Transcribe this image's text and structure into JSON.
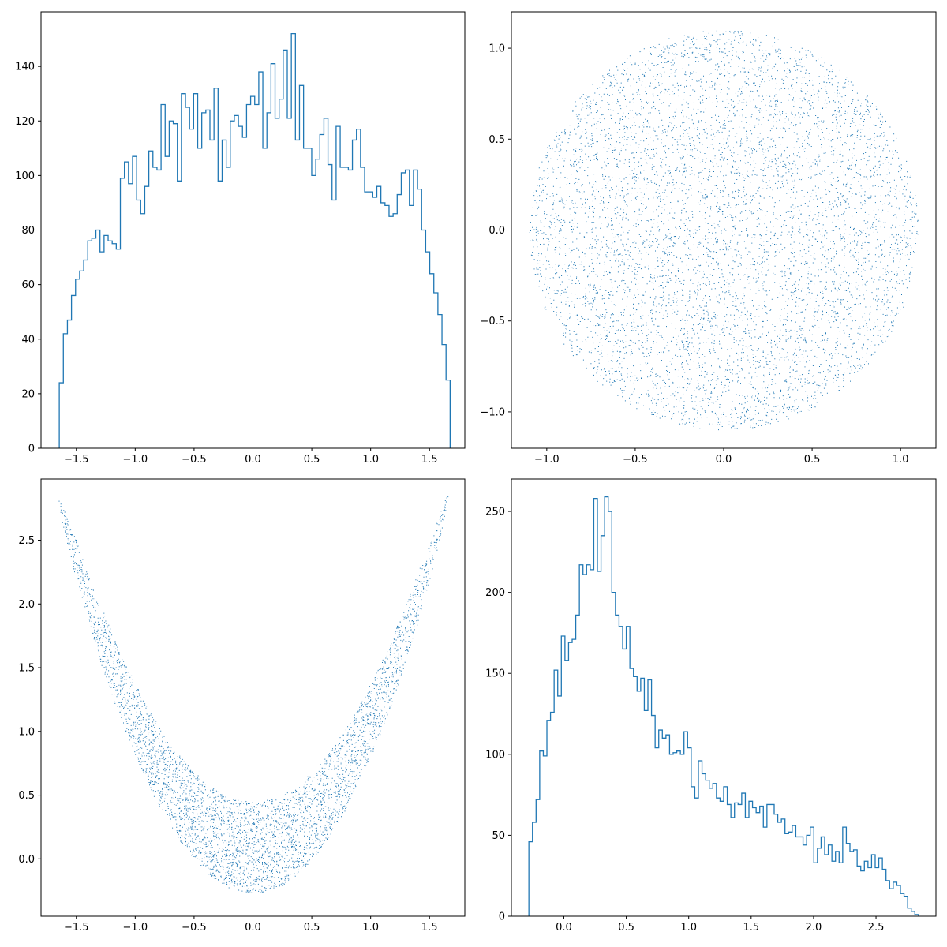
{
  "colors": {
    "series": "#1f77b4",
    "axes": "#000000",
    "background": "#ffffff"
  },
  "chart_data": [
    {
      "id": "hist-x",
      "type": "bar",
      "histtype": "step",
      "title": "",
      "xlabel": "",
      "ylabel": "",
      "xlim": [
        -1.8,
        1.8
      ],
      "ylim": [
        0,
        160
      ],
      "xticks": [
        -1.5,
        -1.0,
        -0.5,
        0.0,
        0.5,
        1.0,
        1.5
      ],
      "xtick_labels": [
        "−1.5",
        "−1.0",
        "−0.5",
        "0.0",
        "0.5",
        "1.0",
        "1.5"
      ],
      "yticks": [
        0,
        20,
        40,
        60,
        80,
        100,
        120,
        140
      ],
      "ytick_labels": [
        "0",
        "20",
        "40",
        "60",
        "80",
        "100",
        "120",
        "140"
      ],
      "bin_start": -1.645,
      "bin_end": 1.675,
      "values": [
        24,
        42,
        47,
        56,
        62,
        65,
        69,
        76,
        77,
        80,
        72,
        78,
        76,
        75,
        73,
        99,
        105,
        97,
        107,
        91,
        86,
        96,
        109,
        103,
        102,
        126,
        107,
        120,
        119,
        98,
        130,
        125,
        117,
        130,
        110,
        123,
        124,
        113,
        132,
        98,
        113,
        103,
        120,
        122,
        118,
        114,
        126,
        129,
        126,
        138,
        110,
        123,
        141,
        121,
        128,
        146,
        121,
        152,
        113,
        133,
        110,
        110,
        100,
        106,
        115,
        121,
        104,
        91,
        118,
        103,
        103,
        102,
        113,
        117,
        103,
        94,
        94,
        92,
        96,
        90,
        89,
        85,
        86,
        93,
        101,
        102,
        89,
        102,
        95,
        80,
        72,
        64,
        57,
        49,
        38,
        25
      ]
    },
    {
      "id": "scatter-circle",
      "type": "scatter",
      "title": "",
      "xlabel": "",
      "ylabel": "",
      "xlim": [
        -1.2,
        1.2
      ],
      "ylim": [
        -1.2,
        1.2
      ],
      "xticks": [
        -1.0,
        -0.5,
        0.0,
        0.5,
        1.0
      ],
      "xtick_labels": [
        "−1.0",
        "−0.5",
        "0.0",
        "0.5",
        "1.0"
      ],
      "yticks": [
        -1.0,
        -0.5,
        0.0,
        0.5,
        1.0
      ],
      "ytick_labels": [
        "−1.0",
        "−0.5",
        "0.0",
        "0.5",
        "1.0"
      ],
      "distribution": "uniform disk",
      "center": [
        0.0,
        0.0
      ],
      "radius": 1.1,
      "n_points": 10000
    },
    {
      "id": "scatter-parabola",
      "type": "scatter",
      "title": "",
      "xlabel": "",
      "ylabel": "",
      "xlim": [
        -1.8,
        1.8
      ],
      "ylim": [
        -0.45,
        2.98
      ],
      "xticks": [
        -1.5,
        -1.0,
        -0.5,
        0.0,
        0.5,
        1.0,
        1.5
      ],
      "xtick_labels": [
        "−1.5",
        "−1.0",
        "−0.5",
        "0.0",
        "0.5",
        "1.0",
        "1.5"
      ],
      "yticks": [
        0.0,
        0.5,
        1.0,
        1.5,
        2.0,
        2.5
      ],
      "ytick_labels": [
        "0.0",
        "0.5",
        "1.0",
        "1.5",
        "2.0",
        "2.5"
      ],
      "distribution": "transformed disk: x = u*1.5, y = x^2 + 0.33*v",
      "x_range": [
        -1.645,
        1.675
      ],
      "y_range": [
        -0.28,
        2.84
      ],
      "n_points": 10000
    },
    {
      "id": "hist-y",
      "type": "bar",
      "histtype": "step",
      "title": "",
      "xlabel": "",
      "ylabel": "",
      "xlim": [
        -0.42,
        2.98
      ],
      "ylim": [
        0,
        270
      ],
      "xticks": [
        0.0,
        0.5,
        1.0,
        1.5,
        2.0,
        2.5
      ],
      "xtick_labels": [
        "0.0",
        "0.5",
        "1.0",
        "1.5",
        "2.0",
        "2.5"
      ],
      "yticks": [
        0,
        50,
        100,
        150,
        200,
        250
      ],
      "ytick_labels": [
        "0",
        "50",
        "100",
        "150",
        "200",
        "250"
      ],
      "bin_start": -0.28,
      "bin_end": 2.84,
      "values": [
        46,
        58,
        72,
        102,
        99,
        121,
        126,
        152,
        136,
        173,
        158,
        169,
        171,
        186,
        217,
        211,
        217,
        214,
        258,
        213,
        235,
        259,
        250,
        200,
        186,
        179,
        165,
        179,
        153,
        148,
        139,
        147,
        127,
        146,
        124,
        104,
        115,
        110,
        112,
        100,
        101,
        102,
        100,
        114,
        104,
        80,
        73,
        96,
        88,
        84,
        79,
        82,
        73,
        71,
        80,
        69,
        61,
        70,
        69,
        76,
        61,
        71,
        67,
        64,
        68,
        55,
        69,
        69,
        63,
        58,
        60,
        51,
        52,
        56,
        49,
        49,
        44,
        50,
        55,
        33,
        42,
        49,
        38,
        44,
        34,
        40,
        33,
        55,
        45,
        40,
        41,
        31,
        28,
        34,
        30,
        38,
        30,
        36,
        29,
        22,
        17,
        21,
        19,
        14,
        12,
        5,
        3,
        1
      ]
    }
  ]
}
